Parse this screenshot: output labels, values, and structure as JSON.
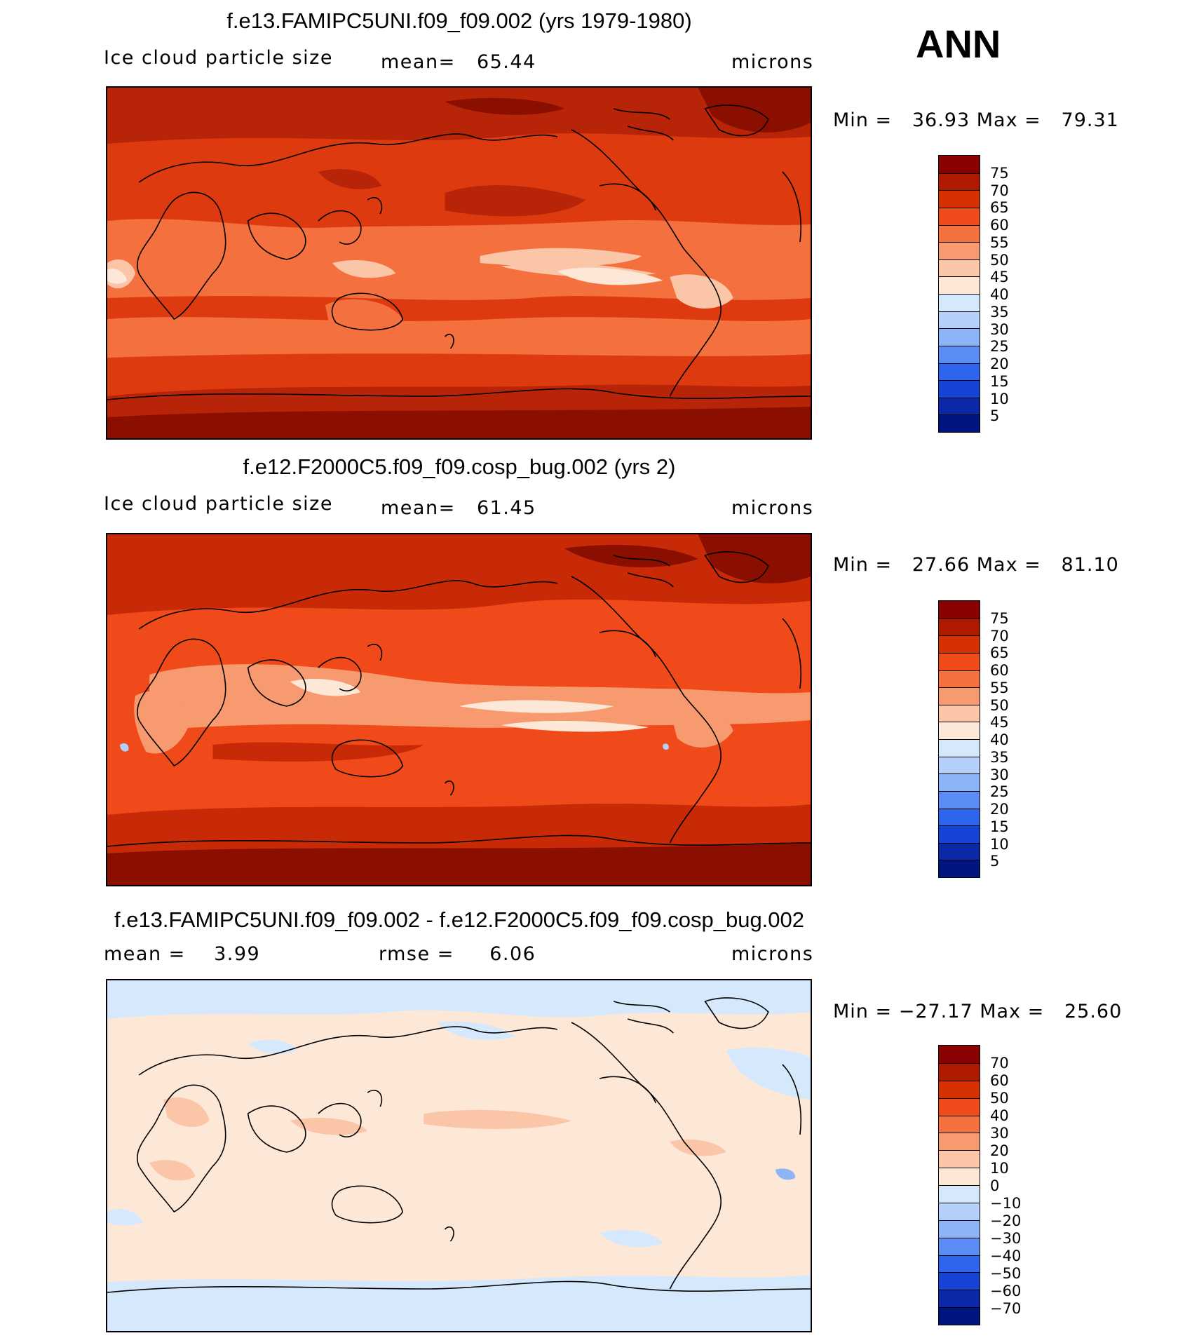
{
  "season": "ANN",
  "panels": [
    {
      "title": "f.e13.FAMIPC5UNI.f09_f09.002 (yrs 1979-1980)",
      "left_label": "Ice cloud particle size",
      "mid_label": "mean=   65.44",
      "right_label": "microns",
      "minmax": "Min =   36.93 Max =   79.31",
      "colorbar_labels": [
        "75",
        "70",
        "65",
        "60",
        "55",
        "50",
        "45",
        "40",
        "35",
        "30",
        "25",
        "20",
        "15",
        "10",
        "5"
      ]
    },
    {
      "title": "f.e12.F2000C5.f09_f09.cosp_bug.002 (yrs 2)",
      "left_label": "Ice cloud particle size",
      "mid_label": "mean=   61.45",
      "right_label": "microns",
      "minmax": "Min =   27.66 Max =   81.10",
      "colorbar_labels": [
        "75",
        "70",
        "65",
        "60",
        "55",
        "50",
        "45",
        "40",
        "35",
        "30",
        "25",
        "20",
        "15",
        "10",
        "5"
      ]
    },
    {
      "title": "f.e13.FAMIPC5UNI.f09_f09.002 - f.e12.F2000C5.f09_f09.cosp_bug.002",
      "left_label": "mean =    3.99",
      "mid_label": "rmse =     6.06",
      "right_label": "microns",
      "minmax": "Min = −27.17 Max =   25.60",
      "colorbar_labels": [
        "70",
        "60",
        "50",
        "40",
        "30",
        "20",
        "10",
        "0",
        "−10",
        "−20",
        "−30",
        "−40",
        "−50",
        "−60",
        "−70"
      ]
    }
  ],
  "colorbar_colors": [
    "#8b0000",
    "#b01a00",
    "#d63000",
    "#f04a1a",
    "#f4703e",
    "#f79a70",
    "#fbc6a8",
    "#fde8d8",
    "#d6e8fb",
    "#b4d0fa",
    "#8eb4f8",
    "#5b8cf4",
    "#2f66ee",
    "#1544d6",
    "#0a28a8",
    "#001580"
  ],
  "map_colors": {
    "p1_base": "#dd3a10",
    "p1_dark": "#b82408",
    "p1_darkest": "#8b0f00",
    "p1_light": "#f4703e",
    "p1_lighter": "#fbc6a8",
    "p1_white": "#fde8d8",
    "p2_base": "#f04a1a",
    "p2_dark": "#c82a08",
    "p2_darkest": "#8b0f00",
    "p2_light": "#f79a70",
    "p2_lighter": "#fde8d8",
    "p2_blue": "#b4d0fa",
    "p3_base": "#fde8d8",
    "p3_blue": "#d6e8fb",
    "p3_pink": "#fbc6a8",
    "p3_deep": "#8eb4f8"
  }
}
